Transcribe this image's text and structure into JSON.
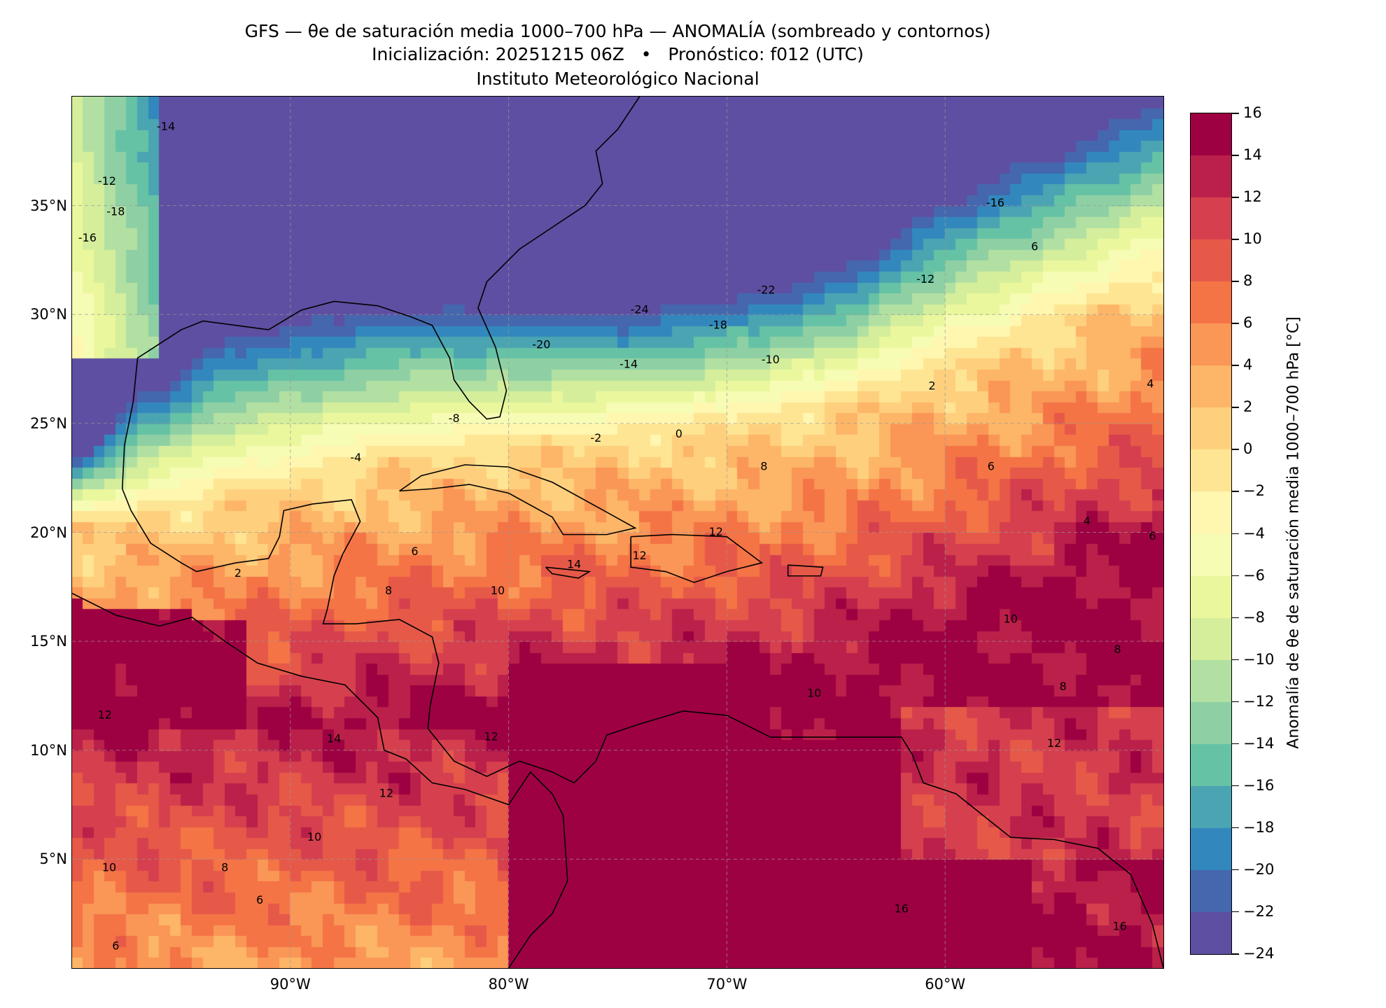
{
  "title": {
    "line1": "GFS — θe de saturación media 1000–700 hPa — ANOMALÍA (sombreado y contornos)",
    "line2": "Inicialización: 20251215 06Z   •   Pronóstico: f012 (UTC)",
    "line3": "Instituto Meteorológico Nacional"
  },
  "map": {
    "extent_lon": [
      -100,
      -50
    ],
    "extent_lat": [
      0,
      40
    ],
    "x_ticks": [
      {
        "lon": -90,
        "label": "90°W"
      },
      {
        "lon": -80,
        "label": "80°W"
      },
      {
        "lon": -70,
        "label": "70°W"
      },
      {
        "lon": -60,
        "label": "60°W"
      }
    ],
    "y_ticks": [
      {
        "lat": 35,
        "label": "35°N"
      },
      {
        "lat": 30,
        "label": "30°N"
      },
      {
        "lat": 25,
        "label": "25°N"
      },
      {
        "lat": 20,
        "label": "20°N"
      },
      {
        "lat": 15,
        "label": "15°N"
      },
      {
        "lat": 10,
        "label": "10°N"
      },
      {
        "lat": 5,
        "label": "5°N"
      }
    ],
    "contour_labels": [
      {
        "t": "-24",
        "lon": -74.0,
        "lat": 30.2
      },
      {
        "t": "-22",
        "lon": -68.2,
        "lat": 31.1
      },
      {
        "t": "-20",
        "lon": -78.5,
        "lat": 28.6
      },
      {
        "t": "-18",
        "lon": -70.4,
        "lat": 29.5
      },
      {
        "t": "-16",
        "lon": -57.7,
        "lat": 35.1
      },
      {
        "t": "-14",
        "lon": -74.5,
        "lat": 27.7
      },
      {
        "t": "-12",
        "lon": -60.9,
        "lat": 31.6
      },
      {
        "t": "-10",
        "lon": -68.0,
        "lat": 27.9
      },
      {
        "t": "-8",
        "lon": -82.5,
        "lat": 25.2
      },
      {
        "t": "6",
        "lon": -55.9,
        "lat": 33.1
      },
      {
        "t": "-4",
        "lon": -87.0,
        "lat": 23.4
      },
      {
        "t": "-2",
        "lon": -76.0,
        "lat": 24.3
      },
      {
        "t": "0",
        "lon": -72.2,
        "lat": 24.5
      },
      {
        "t": "2",
        "lon": -60.6,
        "lat": 26.7
      },
      {
        "t": "2",
        "lon": -92.4,
        "lat": 18.1
      },
      {
        "t": "4",
        "lon": -50.6,
        "lat": 26.8
      },
      {
        "t": "6",
        "lon": -84.3,
        "lat": 19.1
      },
      {
        "t": "6",
        "lon": -57.9,
        "lat": 23.0
      },
      {
        "t": "8",
        "lon": -68.3,
        "lat": 23.0
      },
      {
        "t": "8",
        "lon": -85.5,
        "lat": 17.3
      },
      {
        "t": "10",
        "lon": -80.5,
        "lat": 17.3
      },
      {
        "t": "10",
        "lon": -57.0,
        "lat": 16.0
      },
      {
        "t": "10",
        "lon": -66.0,
        "lat": 12.6
      },
      {
        "t": "12",
        "lon": -70.5,
        "lat": 20.0
      },
      {
        "t": "12",
        "lon": -74.0,
        "lat": 18.9
      },
      {
        "t": "12",
        "lon": -80.8,
        "lat": 10.6
      },
      {
        "t": "12",
        "lon": -55.0,
        "lat": 10.3
      },
      {
        "t": "12",
        "lon": -98.5,
        "lat": 11.6
      },
      {
        "t": "14",
        "lon": -88.0,
        "lat": 10.5
      },
      {
        "t": "14",
        "lon": -77.0,
        "lat": 18.5
      },
      {
        "t": "12",
        "lon": -85.6,
        "lat": 8.0
      },
      {
        "t": "10",
        "lon": -88.9,
        "lat": 6.0
      },
      {
        "t": "10",
        "lon": -98.3,
        "lat": 4.6
      },
      {
        "t": "8",
        "lon": -93.0,
        "lat": 4.6
      },
      {
        "t": "6",
        "lon": -91.4,
        "lat": 3.1
      },
      {
        "t": "6",
        "lon": -98.0,
        "lat": 1.0
      },
      {
        "t": "16",
        "lon": -62.0,
        "lat": 2.7
      },
      {
        "t": "16",
        "lon": -52.0,
        "lat": 1.9
      },
      {
        "t": "-14",
        "lon": -95.7,
        "lat": 38.6
      },
      {
        "t": "-12",
        "lon": -98.4,
        "lat": 36.1
      },
      {
        "t": "-18",
        "lon": -98.0,
        "lat": 34.7
      },
      {
        "t": "-16",
        "lon": -99.3,
        "lat": 33.5
      },
      {
        "t": "8",
        "lon": -52.1,
        "lat": 14.6
      },
      {
        "t": "8",
        "lon": -54.6,
        "lat": 12.9
      },
      {
        "t": "4",
        "lon": -53.5,
        "lat": 20.5
      },
      {
        "t": "6",
        "lon": -50.5,
        "lat": 19.8
      }
    ]
  },
  "colorbar": {
    "label": "Anomalía de θe de saturación media 1000–700 hPa [°C]",
    "levels": [
      -24,
      -22,
      -20,
      -18,
      -16,
      -14,
      -12,
      -10,
      -8,
      -6,
      -4,
      -2,
      0,
      2,
      4,
      6,
      8,
      10,
      12,
      14,
      16
    ],
    "tick_labels": [
      "−24",
      "−22",
      "−20",
      "−18",
      "−16",
      "−14",
      "−12",
      "−10",
      "−8",
      "−6",
      "−4",
      "−2",
      "0",
      "2",
      "4",
      "6",
      "8",
      "10",
      "12",
      "14",
      "16"
    ],
    "colors": [
      "#5e4fa2",
      "#4567ae",
      "#3288bd",
      "#4ba4b1",
      "#66c2a5",
      "#8ed0a4",
      "#b2e0a2",
      "#d5ee9b",
      "#eaf79d",
      "#f7fcb4",
      "#fff6b0",
      "#fee593",
      "#fed07e",
      "#fdb567",
      "#fa9656",
      "#f47446",
      "#e65948",
      "#d6404e",
      "#ba2049",
      "#9e0142"
    ]
  }
}
